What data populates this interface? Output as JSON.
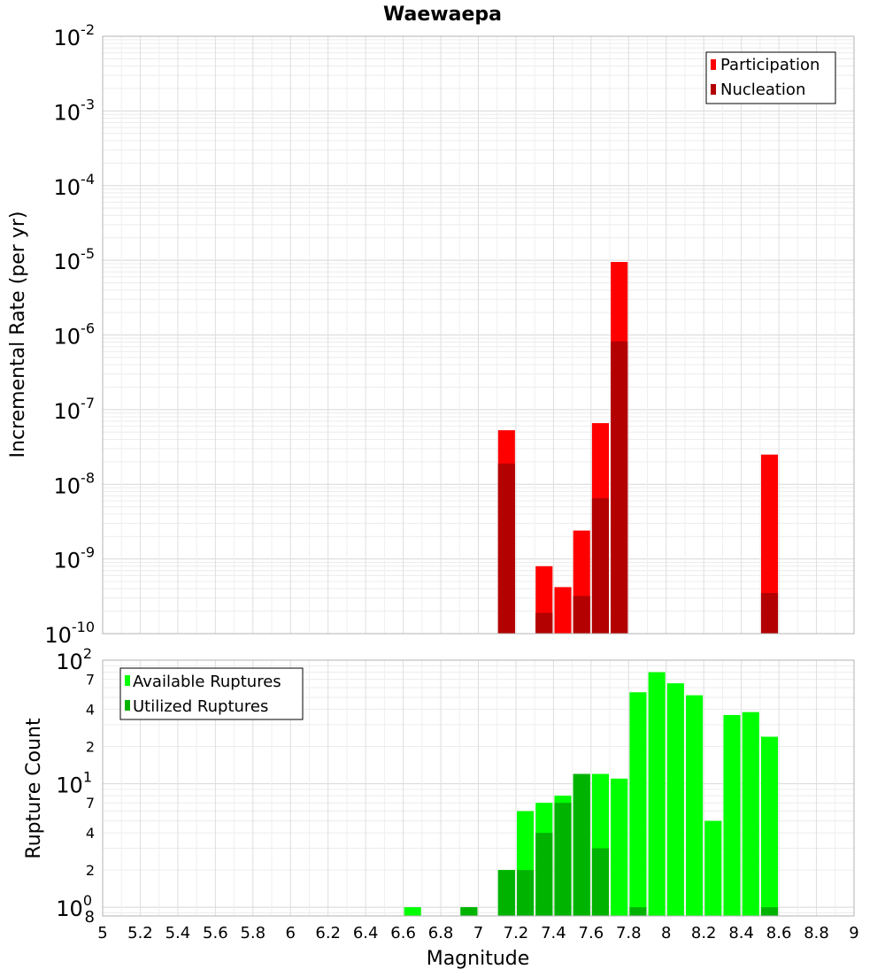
{
  "title": "Waewaepa",
  "xlabel": "Magnitude",
  "x_ticks": [
    "5",
    "5.2",
    "5.4",
    "5.6",
    "5.8",
    "6",
    "6.2",
    "6.4",
    "6.6",
    "6.8",
    "7",
    "7.2",
    "7.4",
    "7.6",
    "7.8",
    "8",
    "8.2",
    "8.4",
    "8.6",
    "8.8",
    "9"
  ],
  "chart_data": [
    {
      "type": "bar",
      "ylabel": "Incremental Rate (per yr)",
      "y_scale": "log",
      "xlim": [
        5,
        9
      ],
      "ylim": [
        1e-10,
        0.01
      ],
      "bar_width": 0.09,
      "y_tick_labels": [
        {
          "base": "10",
          "exp": "-10"
        },
        {
          "base": "10",
          "exp": "-9"
        },
        {
          "base": "10",
          "exp": "-8"
        },
        {
          "base": "10",
          "exp": "-7"
        },
        {
          "base": "10",
          "exp": "-6"
        },
        {
          "base": "10",
          "exp": "-5"
        },
        {
          "base": "10",
          "exp": "-4"
        },
        {
          "base": "10",
          "exp": "-3"
        },
        {
          "base": "10",
          "exp": "-2"
        }
      ],
      "legend_position": "top-right",
      "grid": true,
      "series": [
        {
          "name": "Participation",
          "color": "#ff0000",
          "x": [
            7.15,
            7.35,
            7.45,
            7.55,
            7.65,
            7.75,
            8.55
          ],
          "values": [
            5.3e-08,
            8e-10,
            4.2e-10,
            2.4e-09,
            6.6e-08,
            9.5e-06,
            2.5e-08
          ]
        },
        {
          "name": "Nucleation",
          "color": "#b30000",
          "x": [
            7.15,
            7.35,
            7.55,
            7.65,
            7.75,
            8.55
          ],
          "values": [
            1.9e-08,
            1.9e-10,
            3.2e-10,
            6.5e-09,
            8.2e-07,
            3.5e-10
          ]
        }
      ]
    },
    {
      "type": "bar",
      "ylabel": "Rupture Count",
      "y_scale": "log",
      "xlim": [
        5,
        9
      ],
      "ylim": [
        0.85,
        100
      ],
      "bar_width": 0.09,
      "y_major_labels": [
        {
          "value": 1,
          "base": "10",
          "exp": "0"
        },
        {
          "value": 10,
          "base": "10",
          "exp": "1"
        },
        {
          "value": 100,
          "base": "10",
          "exp": "2"
        }
      ],
      "y_minor_labels": [
        {
          "value": 2,
          "label": "2"
        },
        {
          "value": 4,
          "label": "4"
        },
        {
          "value": 7,
          "label": "7"
        },
        {
          "value": 20,
          "label": "2"
        },
        {
          "value": 40,
          "label": "4"
        },
        {
          "value": 70,
          "label": "7"
        }
      ],
      "y_bottom_label": "8",
      "legend_position": "top-left",
      "grid": true,
      "series": [
        {
          "name": "Available Ruptures",
          "color": "#00ff00",
          "x": [
            6.65,
            6.95,
            7.15,
            7.25,
            7.35,
            7.45,
            7.55,
            7.65,
            7.75,
            7.85,
            7.95,
            8.05,
            8.15,
            8.25,
            8.35,
            8.45,
            8.55
          ],
          "values": [
            1,
            1,
            2,
            6,
            7,
            8,
            12,
            12,
            11,
            55,
            80,
            65,
            52,
            5,
            36,
            38,
            24
          ]
        },
        {
          "name": "Utilized Ruptures",
          "color": "#00b300",
          "x": [
            6.95,
            7.15,
            7.25,
            7.35,
            7.45,
            7.55,
            7.65,
            7.85,
            8.55
          ],
          "values": [
            1,
            2,
            2,
            4,
            7,
            12,
            3,
            1,
            1
          ]
        }
      ]
    }
  ]
}
